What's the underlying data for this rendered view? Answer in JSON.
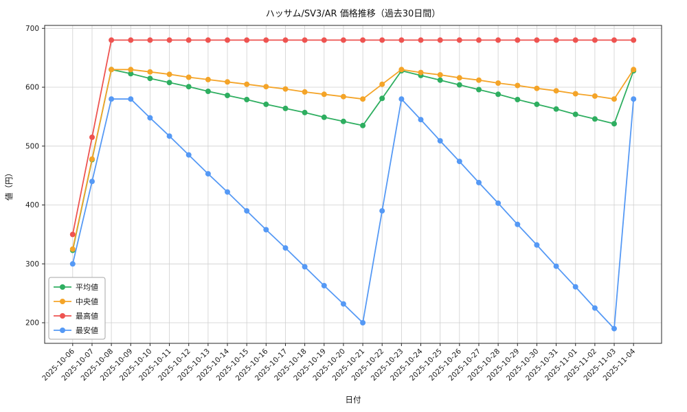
{
  "title": "ハッサム/SV3/AR 価格推移（過去30日間）",
  "chart_data": {
    "type": "line",
    "title": "ハッサム/SV3/AR 価格推移（過去30日間）",
    "xlabel": "日付",
    "ylabel": "値（円）",
    "grid": true,
    "legend_position": "lower left",
    "yticks": [
      200,
      300,
      400,
      500,
      600,
      700
    ],
    "ylim": [
      165,
      705
    ],
    "x": [
      "2025-10-06",
      "2025-10-07",
      "2025-10-08",
      "2025-10-09",
      "2025-10-10",
      "2025-10-11",
      "2025-10-12",
      "2025-10-13",
      "2025-10-14",
      "2025-10-15",
      "2025-10-16",
      "2025-10-17",
      "2025-10-18",
      "2025-10-19",
      "2025-10-20",
      "2025-10-21",
      "2025-10-22",
      "2025-10-23",
      "2025-10-24",
      "2025-10-25",
      "2025-10-26",
      "2025-10-27",
      "2025-10-28",
      "2025-10-29",
      "2025-10-30",
      "2025-10-31",
      "2025-11-01",
      "2025-11-02",
      "2025-11-03",
      "2025-11-04"
    ],
    "series": [
      {
        "key": "avg",
        "name": "平均値",
        "color": "#2eae60",
        "values": [
          323,
          477,
          630,
          623,
          615,
          608,
          601,
          593,
          586,
          579,
          571,
          564,
          557,
          549,
          542,
          535,
          581,
          628,
          620,
          612,
          604,
          596,
          588,
          579,
          571,
          563,
          554,
          546,
          538,
          628
        ]
      },
      {
        "key": "median",
        "name": "中央値",
        "color": "#f4a428",
        "values": [
          325,
          478,
          630,
          630,
          626,
          622,
          617,
          613,
          609,
          605,
          601,
          597,
          592,
          588,
          584,
          580,
          605,
          630,
          625,
          621,
          616,
          612,
          607,
          603,
          598,
          594,
          589,
          585,
          580,
          630
        ]
      },
      {
        "key": "max",
        "name": "最高値",
        "color": "#ee5350",
        "values": [
          350,
          515,
          680,
          680,
          680,
          680,
          680,
          680,
          680,
          680,
          680,
          680,
          680,
          680,
          680,
          680,
          680,
          680,
          680,
          680,
          680,
          680,
          680,
          680,
          680,
          680,
          680,
          680,
          680,
          680
        ]
      },
      {
        "key": "min",
        "name": "最安値",
        "color": "#5599f5",
        "values": [
          300,
          440,
          580,
          580,
          548,
          517,
          485,
          453,
          422,
          390,
          358,
          327,
          295,
          263,
          232,
          200,
          390,
          580,
          545,
          509,
          474,
          438,
          403,
          367,
          332,
          296,
          261,
          225,
          190,
          580
        ]
      }
    ]
  }
}
